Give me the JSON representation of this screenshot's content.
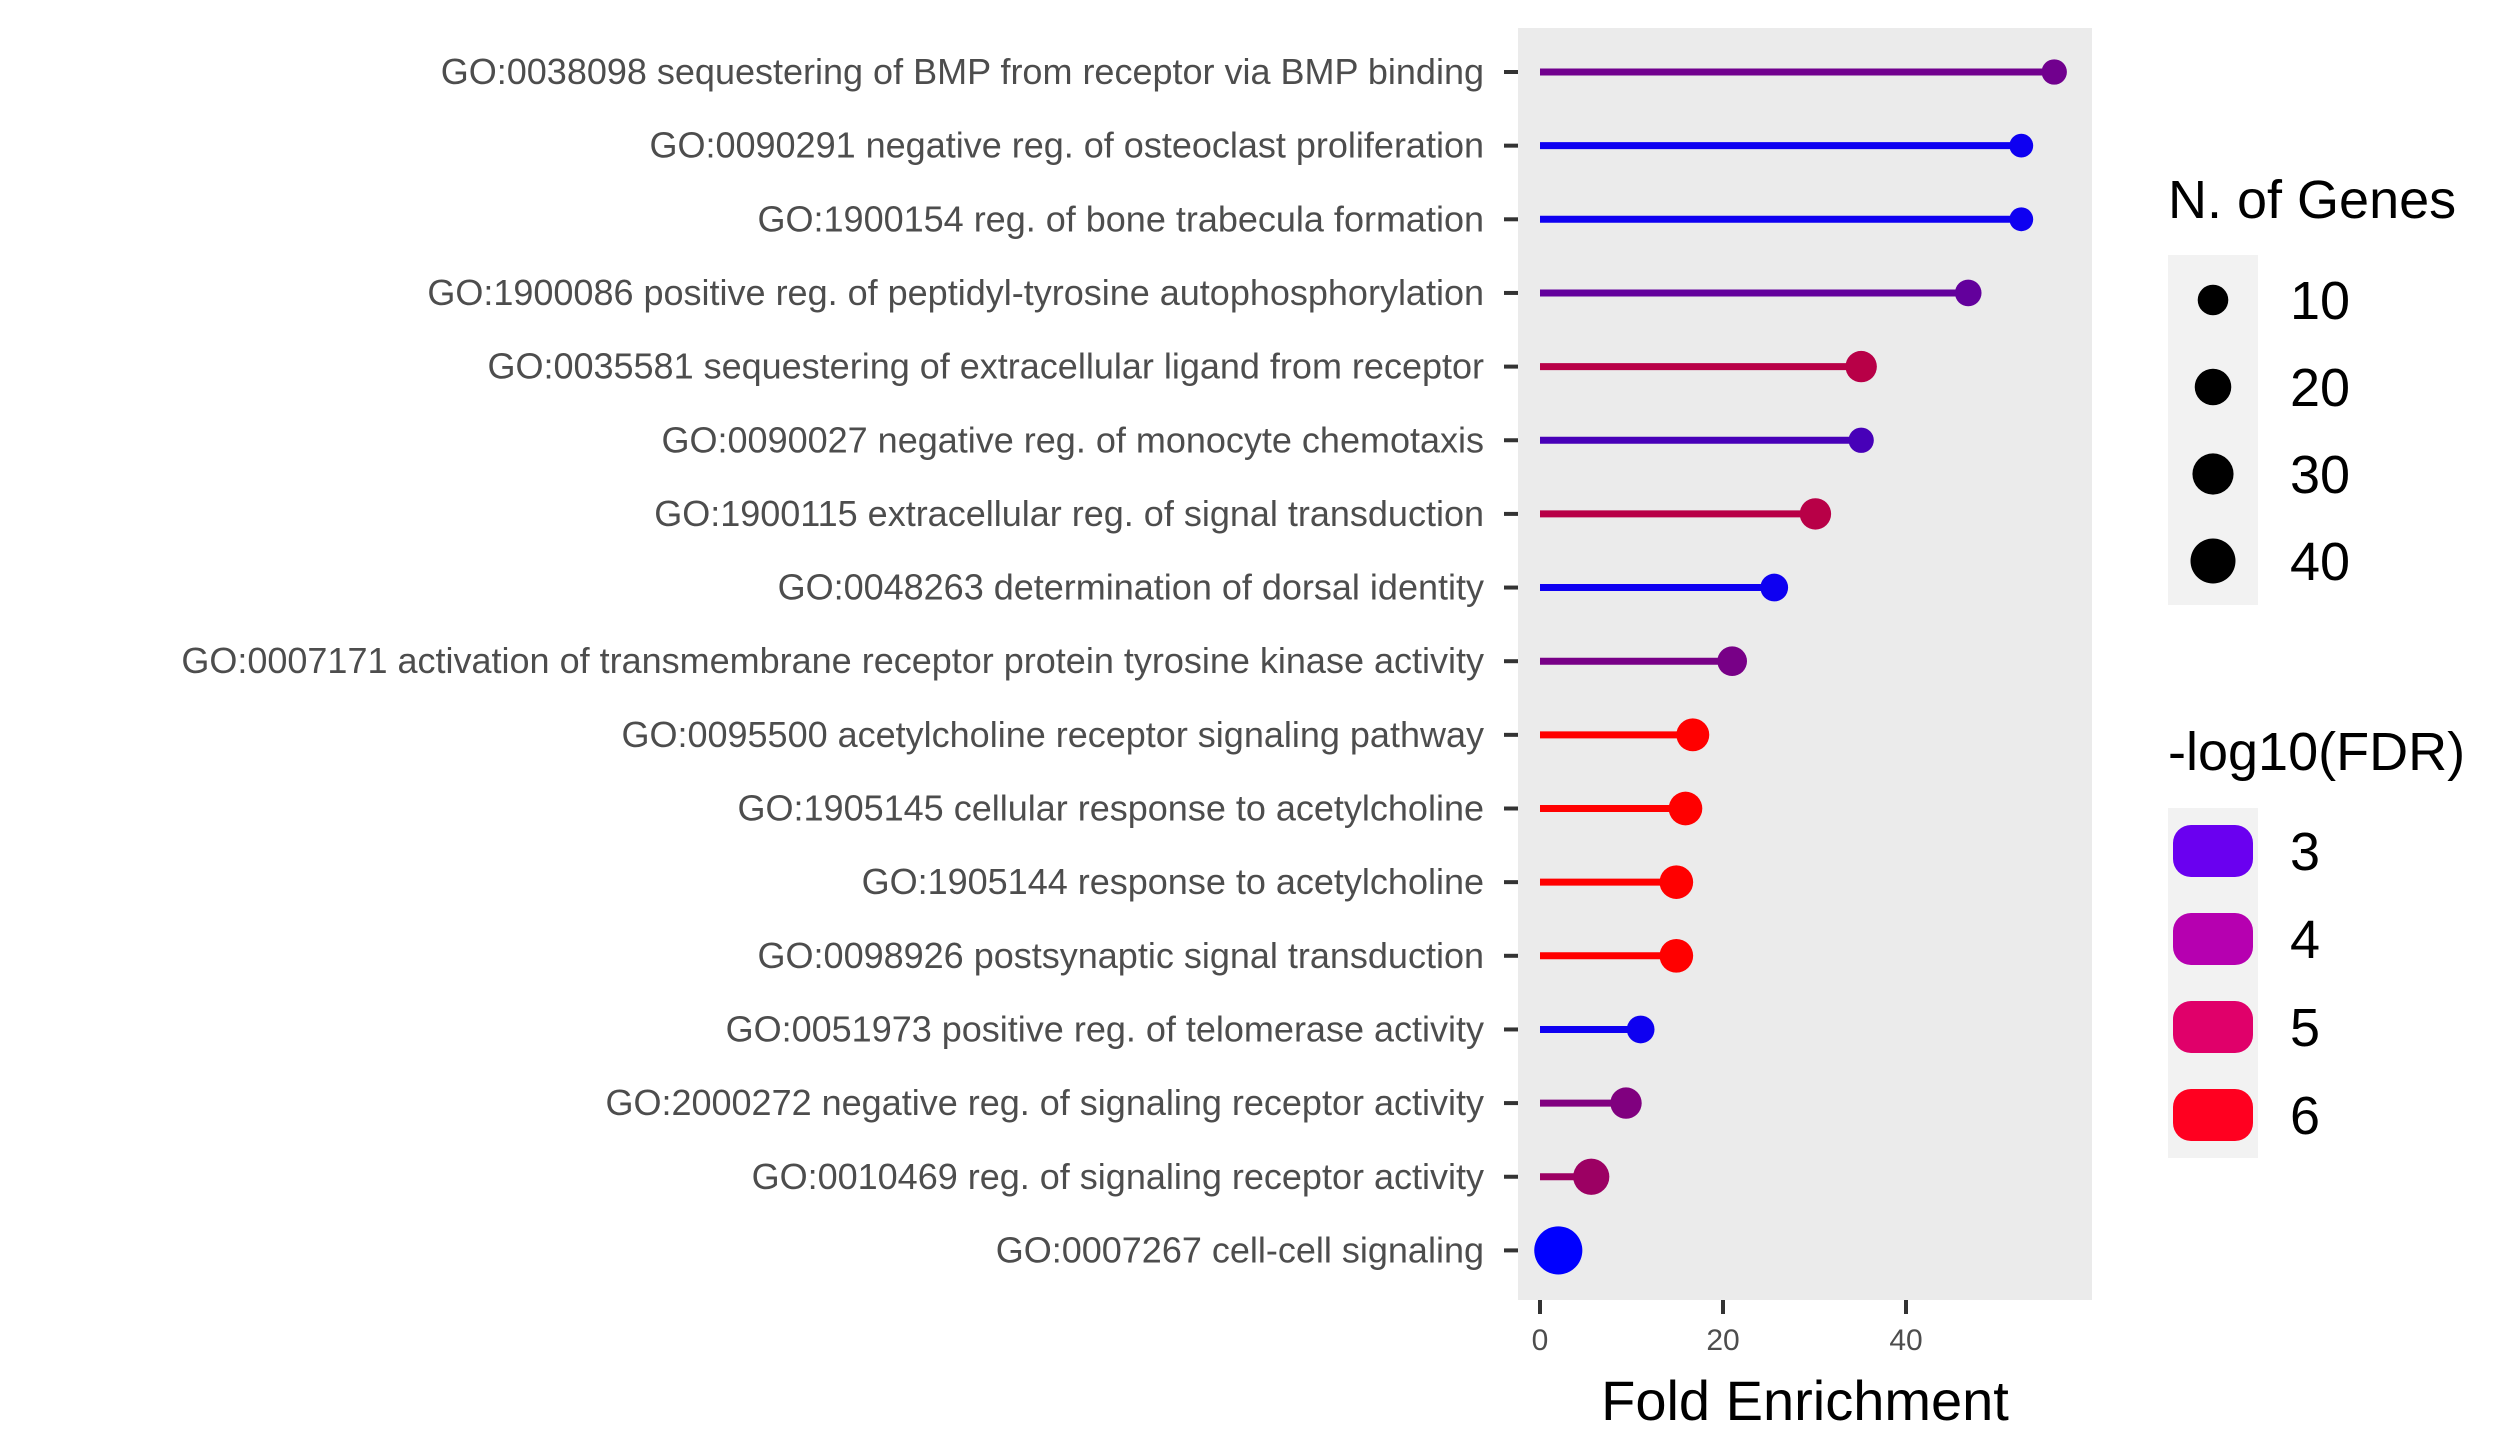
{
  "chart_data": {
    "type": "lollipop",
    "xlabel": "Fold Enrichment",
    "x_ticks": [
      0,
      20,
      40
    ],
    "xlim": [
      -3,
      59
    ],
    "categories": [
      "GO:0038098 sequestering of BMP from receptor via BMP binding",
      "GO:0090291 negative reg. of osteoclast proliferation",
      "GO:1900154 reg. of bone trabecula formation",
      "GO:1900086 positive reg. of peptidyl-tyrosine autophosphorylation",
      "GO:0035581 sequestering of extracellular ligand from receptor",
      "GO:0090027 negative reg. of monocyte chemotaxis",
      "GO:1900115 extracellular reg. of signal transduction",
      "GO:0048263 determination of dorsal identity",
      "GO:0007171 activation of transmembrane receptor protein tyrosine kinase activity",
      "GO:0095500 acetylcholine receptor signaling pathway",
      "GO:1905145 cellular response to acetylcholine",
      "GO:1905144 response to acetylcholine",
      "GO:0098926 postsynaptic signal transduction",
      "GO:0051973 positive reg. of telomerase activity",
      "GO:2000272 negative reg. of signaling receptor activity",
      "GO:0010469 reg. of signaling receptor activity",
      "GO:0007267 cell-cell signaling"
    ],
    "fold_enrichment": [
      56.2,
      52.6,
      52.6,
      46.8,
      35.1,
      35.1,
      30.1,
      25.6,
      21.0,
      16.7,
      15.9,
      14.9,
      14.9,
      11.0,
      9.4,
      5.6,
      2.0
    ],
    "n_genes": [
      3,
      2,
      2,
      4,
      9,
      3,
      9,
      5,
      7,
      11,
      12,
      12,
      12,
      5,
      9,
      16,
      42
    ],
    "neg_log10_fdr": [
      4.0,
      2.6,
      2.6,
      3.8,
      5.0,
      3.4,
      5.0,
      2.6,
      4.1,
      6.0,
      6.0,
      6.0,
      6.0,
      2.6,
      4.2,
      4.6,
      2.4
    ],
    "size_legend": {
      "title": "N. of Genes",
      "values": [
        10,
        20,
        30,
        40
      ],
      "labels": [
        "10",
        "20",
        "30",
        "40"
      ]
    },
    "color_legend": {
      "title": "-log10(FDR)",
      "values": [
        3,
        4,
        5,
        6
      ],
      "labels": [
        "3",
        "4",
        "5",
        "6"
      ],
      "colors": [
        "#6a00f0",
        "#b600b0",
        "#e0006a",
        "#ff0020"
      ]
    },
    "color_scale": {
      "low": "#0000ff",
      "high": "#ff0000",
      "range": [
        2.4,
        6.0
      ]
    },
    "panel_background": "#ebebeb",
    "grid": false
  }
}
